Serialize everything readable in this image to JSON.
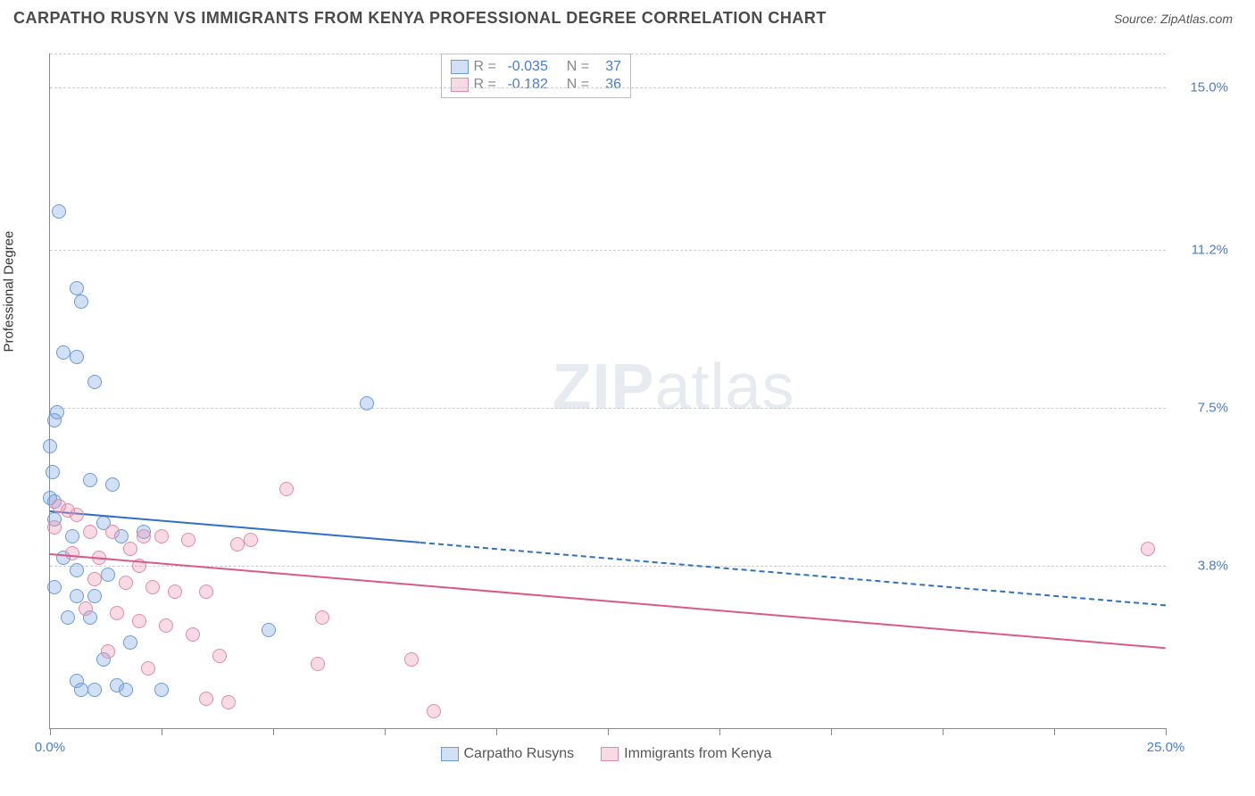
{
  "header": {
    "title": "CARPATHO RUSYN VS IMMIGRANTS FROM KENYA PROFESSIONAL DEGREE CORRELATION CHART",
    "source_prefix": "Source: ",
    "source_name": "ZipAtlas.com"
  },
  "chart": {
    "type": "scatter",
    "ylabel": "Professional Degree",
    "xlim": [
      0,
      25
    ],
    "ylim": [
      0,
      15.8
    ],
    "y_gridlines": [
      3.8,
      7.5,
      11.2,
      15.0,
      15.8
    ],
    "y_tick_labels": [
      "3.8%",
      "7.5%",
      "11.2%",
      "15.0%"
    ],
    "x_ticks": [
      0,
      2.5,
      5,
      7.5,
      10,
      12.5,
      15,
      17.5,
      20,
      22.5,
      25
    ],
    "x_tick_labels": {
      "0": "0.0%",
      "25": "25.0%"
    },
    "background_color": "#ffffff",
    "grid_color": "#cccccc",
    "axis_color": "#888888",
    "series": [
      {
        "name": "Carpatho Rusyns",
        "fill": "rgba(122,167,224,0.35)",
        "stroke": "#6a9bd8",
        "line_color": "#2f6fc7",
        "r_value": "-0.035",
        "n_value": "37",
        "regression": {
          "x1": 0,
          "y1": 5.1,
          "x2": 25,
          "y2": 2.9,
          "solid_until_x": 8.3
        },
        "points": [
          [
            0.2,
            12.1
          ],
          [
            0.6,
            10.3
          ],
          [
            0.7,
            10.0
          ],
          [
            0.3,
            8.8
          ],
          [
            0.6,
            8.7
          ],
          [
            1.0,
            8.1
          ],
          [
            0.1,
            7.2
          ],
          [
            0.15,
            7.4
          ],
          [
            0.0,
            6.6
          ],
          [
            0.05,
            6.0
          ],
          [
            7.1,
            7.6
          ],
          [
            0.0,
            5.4
          ],
          [
            0.1,
            5.3
          ],
          [
            0.9,
            5.8
          ],
          [
            1.4,
            5.7
          ],
          [
            0.1,
            4.9
          ],
          [
            0.5,
            4.5
          ],
          [
            1.2,
            4.8
          ],
          [
            1.6,
            4.5
          ],
          [
            2.1,
            4.6
          ],
          [
            0.3,
            4.0
          ],
          [
            0.6,
            3.7
          ],
          [
            1.3,
            3.6
          ],
          [
            0.1,
            3.3
          ],
          [
            0.6,
            3.1
          ],
          [
            1.0,
            3.1
          ],
          [
            0.4,
            2.6
          ],
          [
            0.9,
            2.6
          ],
          [
            4.9,
            2.3
          ],
          [
            0.6,
            1.1
          ],
          [
            0.7,
            0.9
          ],
          [
            1.0,
            0.9
          ],
          [
            1.5,
            1.0
          ],
          [
            1.7,
            0.9
          ],
          [
            2.5,
            0.9
          ],
          [
            1.2,
            1.6
          ],
          [
            1.8,
            2.0
          ]
        ]
      },
      {
        "name": "Immigrants from Kenya",
        "fill": "rgba(232,150,178,0.35)",
        "stroke": "#e08aad",
        "line_color": "#d85a8a",
        "r_value": "-0.182",
        "n_value": "36",
        "regression": {
          "x1": 0,
          "y1": 4.1,
          "x2": 25,
          "y2": 1.9,
          "solid_until_x": 25
        },
        "points": [
          [
            5.3,
            5.6
          ],
          [
            0.2,
            5.2
          ],
          [
            0.4,
            5.1
          ],
          [
            0.6,
            5.0
          ],
          [
            0.1,
            4.7
          ],
          [
            0.9,
            4.6
          ],
          [
            1.4,
            4.6
          ],
          [
            2.1,
            4.5
          ],
          [
            2.5,
            4.5
          ],
          [
            3.1,
            4.4
          ],
          [
            0.5,
            4.1
          ],
          [
            1.1,
            4.0
          ],
          [
            24.6,
            4.2
          ],
          [
            1.0,
            3.5
          ],
          [
            1.7,
            3.4
          ],
          [
            2.3,
            3.3
          ],
          [
            2.8,
            3.2
          ],
          [
            3.5,
            3.2
          ],
          [
            4.5,
            4.4
          ],
          [
            0.8,
            2.8
          ],
          [
            1.5,
            2.7
          ],
          [
            2.0,
            2.5
          ],
          [
            2.6,
            2.4
          ],
          [
            3.2,
            2.2
          ],
          [
            6.1,
            2.6
          ],
          [
            3.8,
            1.7
          ],
          [
            8.1,
            1.6
          ],
          [
            6.0,
            1.5
          ],
          [
            3.5,
            0.7
          ],
          [
            4.0,
            0.6
          ],
          [
            8.6,
            0.4
          ],
          [
            2.2,
            1.4
          ],
          [
            1.3,
            1.8
          ],
          [
            2.0,
            3.8
          ],
          [
            4.2,
            4.3
          ],
          [
            1.8,
            4.2
          ]
        ]
      }
    ],
    "stats_labels": {
      "r": "R =",
      "n": "N ="
    },
    "watermark": {
      "bold": "ZIP",
      "light": "atlas"
    }
  }
}
